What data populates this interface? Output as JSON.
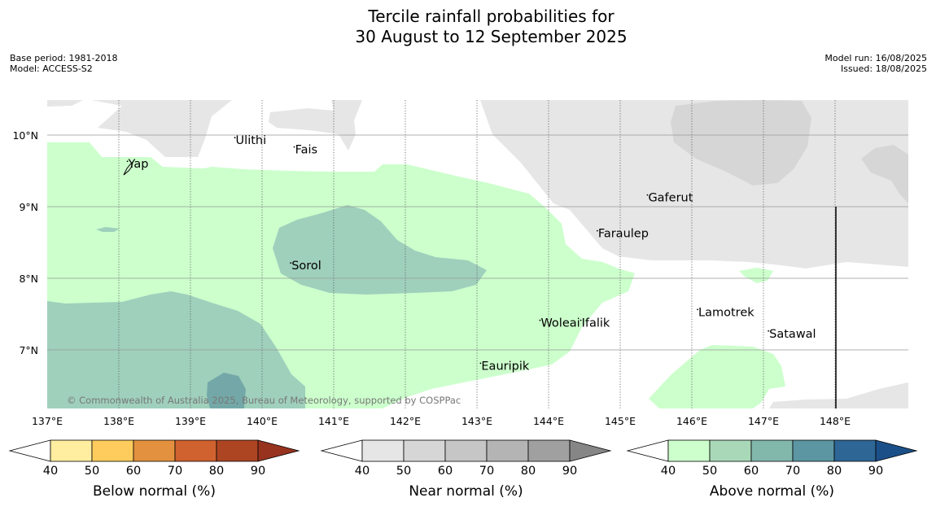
{
  "title": {
    "line1": "Tercile rainfall probabilities for",
    "line2": "30 August to 12 September 2025"
  },
  "meta_left": {
    "base_period": "Base period: 1981-2018",
    "model": "Model: ACCESS-S2"
  },
  "meta_right": {
    "model_run": "Model run: 16/08/2025",
    "issued": "Issued: 18/08/2025"
  },
  "copyright": "© Commonwealth of Australia 2025, Bureau of Meteorology, supported by COSPPac",
  "axes": {
    "lon_ticks": [
      "137°E",
      "138°E",
      "139°E",
      "140°E",
      "141°E",
      "142°E",
      "143°E",
      "144°E",
      "145°E",
      "146°E",
      "147°E",
      "148°E"
    ],
    "lat_ticks": [
      "10°N",
      "9°N",
      "8°N",
      "7°N"
    ]
  },
  "places": [
    {
      "name": "Ulithi",
      "lon": 139.62,
      "lat": 9.85
    },
    {
      "name": "Fais",
      "lon": 140.45,
      "lat": 9.72
    },
    {
      "name": "Yap",
      "lon": 138.12,
      "lat": 9.52
    },
    {
      "name": "Gaferut",
      "lon": 145.38,
      "lat": 9.05
    },
    {
      "name": "Faraulep",
      "lon": 144.68,
      "lat": 8.55
    },
    {
      "name": "Sorol",
      "lon": 140.4,
      "lat": 8.1
    },
    {
      "name": "Woleai",
      "lon": 143.88,
      "lat": 7.3
    },
    {
      "name": "Ifalik",
      "lon": 144.45,
      "lat": 7.3
    },
    {
      "name": "Lamotrek",
      "lon": 146.08,
      "lat": 7.45
    },
    {
      "name": "Satawal",
      "lon": 147.07,
      "lat": 7.15
    },
    {
      "name": "Eauripik",
      "lon": 143.05,
      "lat": 6.7
    }
  ],
  "colorbars": [
    {
      "label": "Below normal (%)",
      "ticks": [
        "40",
        "50",
        "60",
        "70",
        "80",
        "90"
      ],
      "colors": [
        "#ffeda0",
        "#fecc5c",
        "#e3913f",
        "#d0622f",
        "#ad4523",
        "#97331f"
      ]
    },
    {
      "label": "Near normal (%)",
      "ticks": [
        "40",
        "50",
        "60",
        "70",
        "80",
        "90"
      ],
      "colors": [
        "#e6e6e6",
        "#d6d6d6",
        "#c6c6c6",
        "#b4b4b4",
        "#a0a0a0",
        "#868686"
      ]
    },
    {
      "label": "Above normal (%)",
      "ticks": [
        "40",
        "50",
        "60",
        "70",
        "80",
        "90"
      ],
      "colors": [
        "#ccffcc",
        "#a8d8b8",
        "#82b8ac",
        "#5c96a2",
        "#2e6696",
        "#1b4f88"
      ]
    }
  ]
}
